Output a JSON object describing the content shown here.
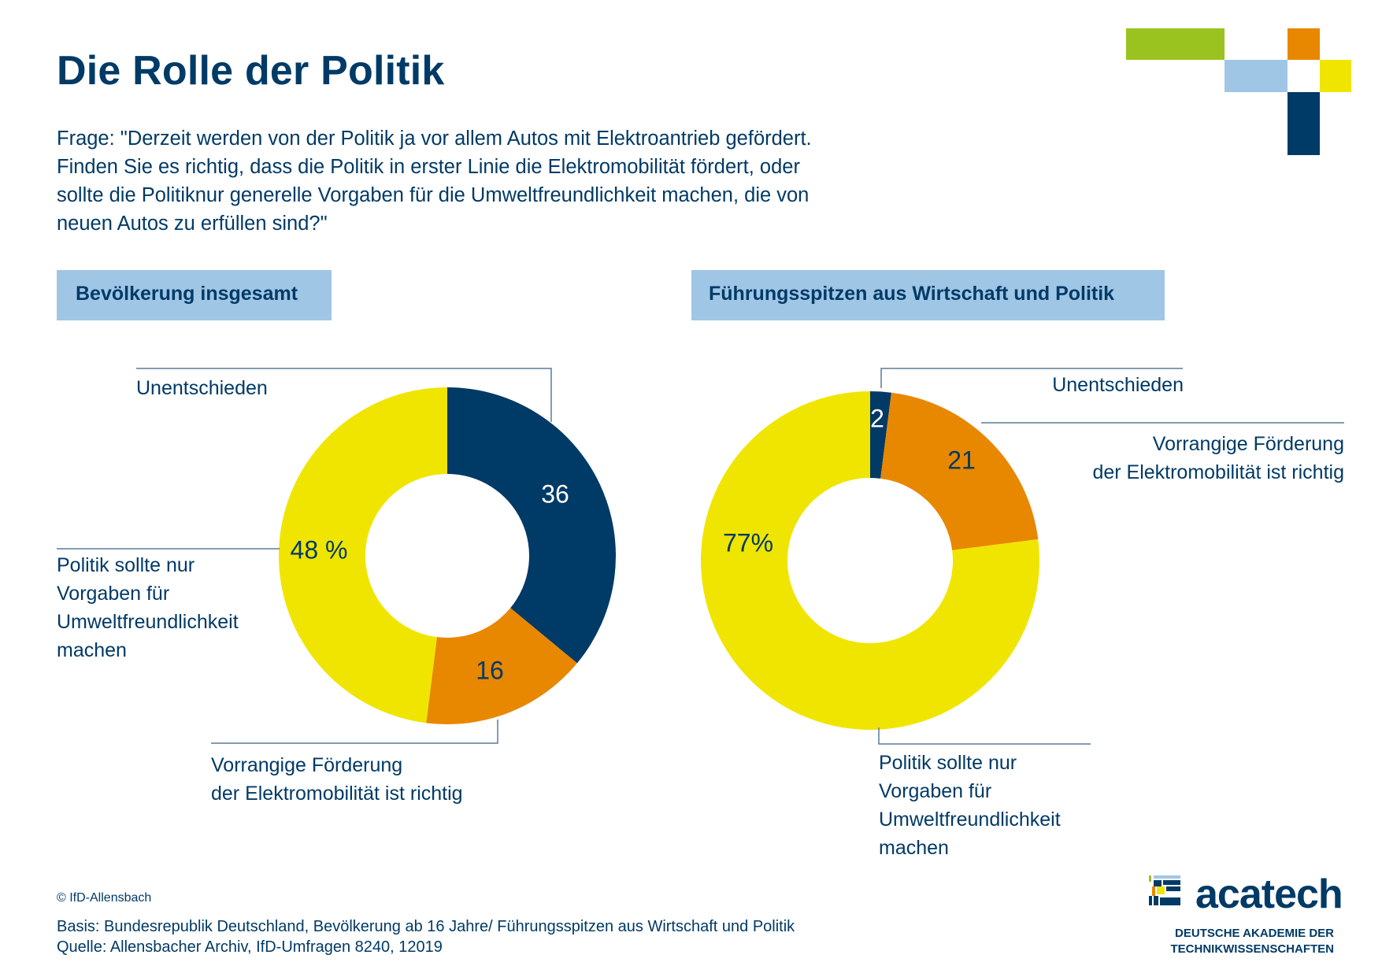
{
  "title": "Die Rolle der Politik",
  "question": [
    "Frage: \"Derzeit werden von der Politik ja vor allem Autos mit Elektroantrieb gefördert.",
    "Finden Sie es richtig, dass die Politik in erster Linie die Elektromobilität fördert, oder",
    "sollte die Politiknur generelle Vorgaben für die Umweltfreundlichkeit machen, die von",
    "neuen Autos zu erfüllen sind?\""
  ],
  "colors": {
    "navy": "#003a66",
    "orange": "#e88700",
    "yellow": "#f0e500",
    "light_blue": "#a0c6e6",
    "green": "#9ac31f",
    "leader_line": "#5a7c9a"
  },
  "chart_data": [
    {
      "type": "pie",
      "variant": "donut",
      "title": "Bevölkerung insgesamt",
      "unit": "%",
      "start": "12 o'clock",
      "direction": "clockwise",
      "categories": [
        "Unentschieden",
        "Vorrangige Förderung der Elektromobilität ist richtig",
        "Politik sollte nur Vorgaben für Umweltfreundlichkeit machen"
      ],
      "values": [
        36,
        16,
        48
      ],
      "data_labels": [
        "36",
        "16",
        "48 %"
      ],
      "slice_colors": [
        "navy",
        "orange",
        "yellow"
      ],
      "label_text_colors": [
        "#ffffff",
        "#003a66",
        "#003a66"
      ],
      "legend_labels": {
        "undecided": [
          "Unentschieden"
        ],
        "promote": [
          "Vorrangige Förderung",
          "der Elektromobilität ist richtig"
        ],
        "standards": [
          "Politik sollte nur",
          "Vorgaben für",
          "Umweltfreundlichkeit",
          "machen"
        ]
      }
    },
    {
      "type": "pie",
      "variant": "donut",
      "title": "Führungsspitzen aus Wirtschaft und Politik",
      "unit": "%",
      "start": "12 o'clock",
      "direction": "clockwise",
      "categories": [
        "Unentschieden",
        "Vorrangige Förderung der Elektromobilität ist richtig",
        "Politik sollte nur Vorgaben für Umweltfreundlichkeit machen"
      ],
      "values": [
        2,
        21,
        77
      ],
      "data_labels": [
        "2",
        "21",
        "77%"
      ],
      "slice_colors": [
        "navy",
        "orange",
        "yellow"
      ],
      "label_text_colors": [
        "#ffffff",
        "#003a66",
        "#003a66"
      ],
      "legend_labels": {
        "undecided": [
          "Unentschieden"
        ],
        "promote": [
          "Vorrangige Förderung",
          "der Elektromobilität ist richtig"
        ],
        "standards": [
          "Politik sollte nur",
          "Vorgaben für",
          "Umweltfreundlichkeit",
          "machen"
        ]
      }
    }
  ],
  "footer": {
    "copyright": "© IfD-Allensbach",
    "basis": "Basis: Bundesrepublik Deutschland, Bevölkerung ab 16 Jahre/ Führungsspitzen aus Wirtschaft und Politik",
    "source": "Quelle: Allensbacher Archiv, IfD-Umfragen 8240, 12019"
  },
  "logo": {
    "name": "acatech",
    "subtitle": [
      "DEUTSCHE AKADEMIE DER",
      "TECHNIKWISSENSCHAFTEN"
    ]
  }
}
